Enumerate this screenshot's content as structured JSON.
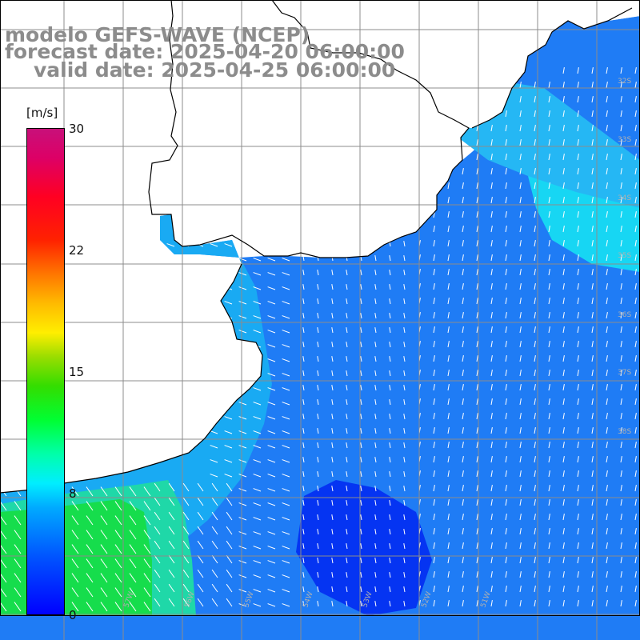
{
  "header": {
    "line1": "modelo GEFS-WAVE (NCEP)",
    "line2": "forecast date: 2025-04-20 06:00:00",
    "line3": "valid date: 2025-04-25 06:00:00"
  },
  "colorbar": {
    "unit": "[m/s]",
    "ticks": [
      "30",
      "22",
      "15",
      "8",
      "0"
    ],
    "colors": [
      "#0000ff",
      "#00aaff",
      "#00ffee",
      "#00ff33",
      "#ffee00",
      "#ff7700",
      "#ff0022",
      "#c8107a"
    ]
  },
  "map": {
    "background": "#ffffff",
    "grid_color": "#8c8c8c",
    "coast_color": "#000000",
    "lon_labels": [
      "57W",
      "56W",
      "55W",
      "54W",
      "53W",
      "52W",
      "51W"
    ],
    "lat_labels": [
      "32S",
      "33S",
      "34S",
      "35S",
      "36S",
      "37S",
      "38S"
    ]
  }
}
